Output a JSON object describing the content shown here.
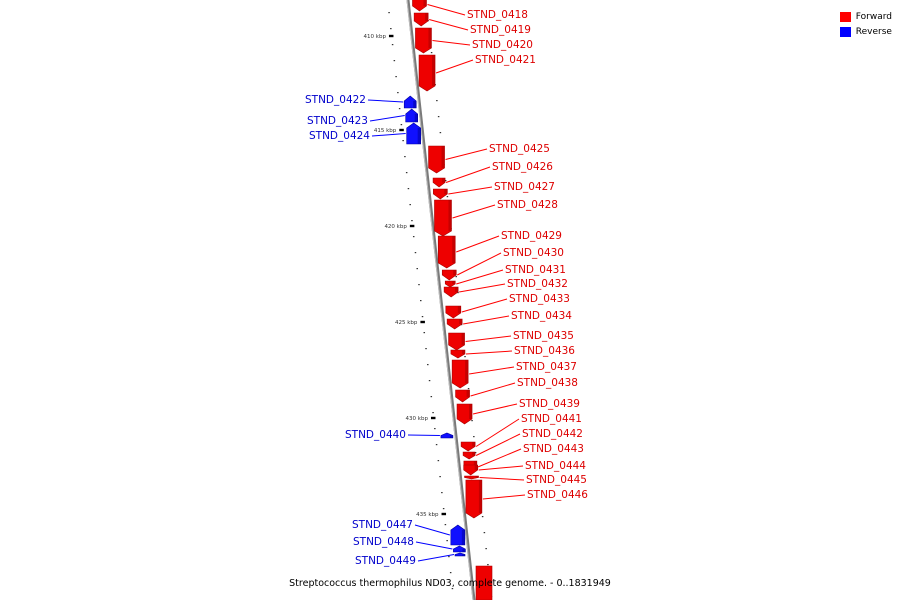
{
  "legend": {
    "forward": {
      "label": "Forward",
      "color": "#ff0000"
    },
    "reverse": {
      "label": "Reverse",
      "color": "#0000ff"
    }
  },
  "caption": "Streptococcus thermophilus ND03, complete genome. - 0..1831949",
  "colors": {
    "forward": "#ee0000",
    "forward_dark": "#a80000",
    "reverse": "#1010ff",
    "reverse_dark": "#0000a0",
    "backbone": "#7a7a7a"
  },
  "axis_ticks": [
    "410 kbp",
    "415 kbp",
    "420 kbp",
    "425 kbp",
    "430 kbp",
    "435 kbp"
  ],
  "forward_genes": [
    "STND_0418",
    "STND_0419",
    "STND_0420",
    "STND_0421",
    "STND_0425",
    "STND_0426",
    "STND_0427",
    "STND_0428",
    "STND_0429",
    "STND_0430",
    "STND_0431",
    "STND_0432",
    "STND_0433",
    "STND_0434",
    "STND_0435",
    "STND_0436",
    "STND_0437",
    "STND_0438",
    "STND_0439",
    "STND_0441",
    "STND_0442",
    "STND_0443",
    "STND_0444",
    "STND_0445",
    "STND_0446"
  ],
  "reverse_genes": [
    "STND_0422",
    "STND_0423",
    "STND_0424",
    "STND_0440",
    "STND_0447",
    "STND_0448",
    "STND_0449"
  ]
}
